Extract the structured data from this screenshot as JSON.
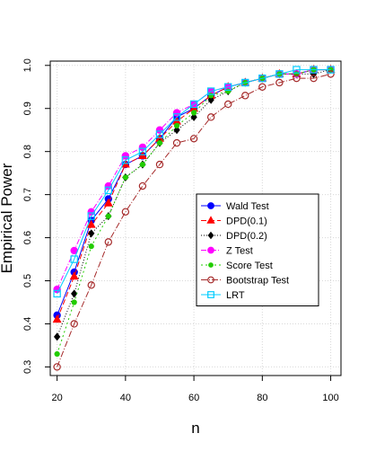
{
  "chart_data": {
    "type": "line",
    "title": "",
    "xlabel": "n",
    "ylabel": "Empirical Power",
    "xlim": [
      18,
      103
    ],
    "ylim": [
      0.28,
      1.01
    ],
    "xticks": [
      20,
      40,
      60,
      80,
      100
    ],
    "yticks": [
      0.3,
      0.4,
      0.5,
      0.6,
      0.7,
      0.8,
      0.9,
      1.0
    ],
    "ytick_labels": [
      "0.3",
      "0.4",
      "0.5",
      "0.6",
      "0.7",
      "0.8",
      "0.9",
      "1.0"
    ],
    "grid": true,
    "legend_position": "center-right",
    "x": [
      20,
      25,
      30,
      35,
      40,
      45,
      50,
      55,
      60,
      65,
      70,
      75,
      80,
      85,
      90,
      95,
      100
    ],
    "series": [
      {
        "name": "Wald Test",
        "color": "#0000ff",
        "dash": "",
        "marker": "circle",
        "filled": true,
        "values": [
          0.42,
          0.52,
          0.64,
          0.69,
          0.77,
          0.79,
          0.83,
          0.88,
          0.9,
          0.93,
          0.95,
          0.96,
          0.97,
          0.98,
          0.98,
          0.99,
          0.99
        ]
      },
      {
        "name": "DPD(0.1)",
        "color": "#ff0000",
        "dash": "6,3",
        "marker": "triangle",
        "filled": true,
        "values": [
          0.41,
          0.51,
          0.63,
          0.68,
          0.77,
          0.79,
          0.83,
          0.87,
          0.9,
          0.93,
          0.95,
          0.96,
          0.97,
          0.98,
          0.98,
          0.99,
          0.99
        ]
      },
      {
        "name": "DPD(0.2)",
        "color": "#000000",
        "dash": "1,2",
        "marker": "diamond",
        "filled": true,
        "values": [
          0.37,
          0.47,
          0.61,
          0.65,
          0.74,
          0.77,
          0.82,
          0.85,
          0.88,
          0.92,
          0.94,
          0.96,
          0.97,
          0.98,
          0.98,
          0.98,
          0.99
        ]
      },
      {
        "name": "Z Test",
        "color": "#ff00ff",
        "dash": "6,2,1,2",
        "marker": "circle",
        "filled": true,
        "values": [
          0.48,
          0.57,
          0.66,
          0.72,
          0.79,
          0.81,
          0.85,
          0.89,
          0.91,
          0.94,
          0.95,
          0.96,
          0.97,
          0.98,
          0.98,
          0.99,
          0.99
        ]
      },
      {
        "name": "Score Test",
        "color": "#22cc00",
        "dash": "2,3",
        "marker": "circle-small",
        "filled": true,
        "values": [
          0.33,
          0.45,
          0.58,
          0.65,
          0.74,
          0.77,
          0.82,
          0.86,
          0.89,
          0.93,
          0.94,
          0.96,
          0.97,
          0.98,
          0.98,
          0.99,
          0.99
        ]
      },
      {
        "name": "Bootstrap Test",
        "color": "#a52a2a",
        "dash": "7,2,1,2",
        "marker": "circle",
        "filled": false,
        "values": [
          0.3,
          0.4,
          0.49,
          0.59,
          0.66,
          0.72,
          0.77,
          0.82,
          0.83,
          0.88,
          0.91,
          0.93,
          0.95,
          0.96,
          0.97,
          0.97,
          0.98
        ]
      },
      {
        "name": "LRT",
        "color": "#00ccff",
        "dash": "",
        "marker": "square",
        "filled": false,
        "values": [
          0.47,
          0.55,
          0.65,
          0.71,
          0.78,
          0.8,
          0.84,
          0.88,
          0.91,
          0.94,
          0.95,
          0.96,
          0.97,
          0.98,
          0.99,
          0.99,
          0.99
        ]
      }
    ]
  }
}
